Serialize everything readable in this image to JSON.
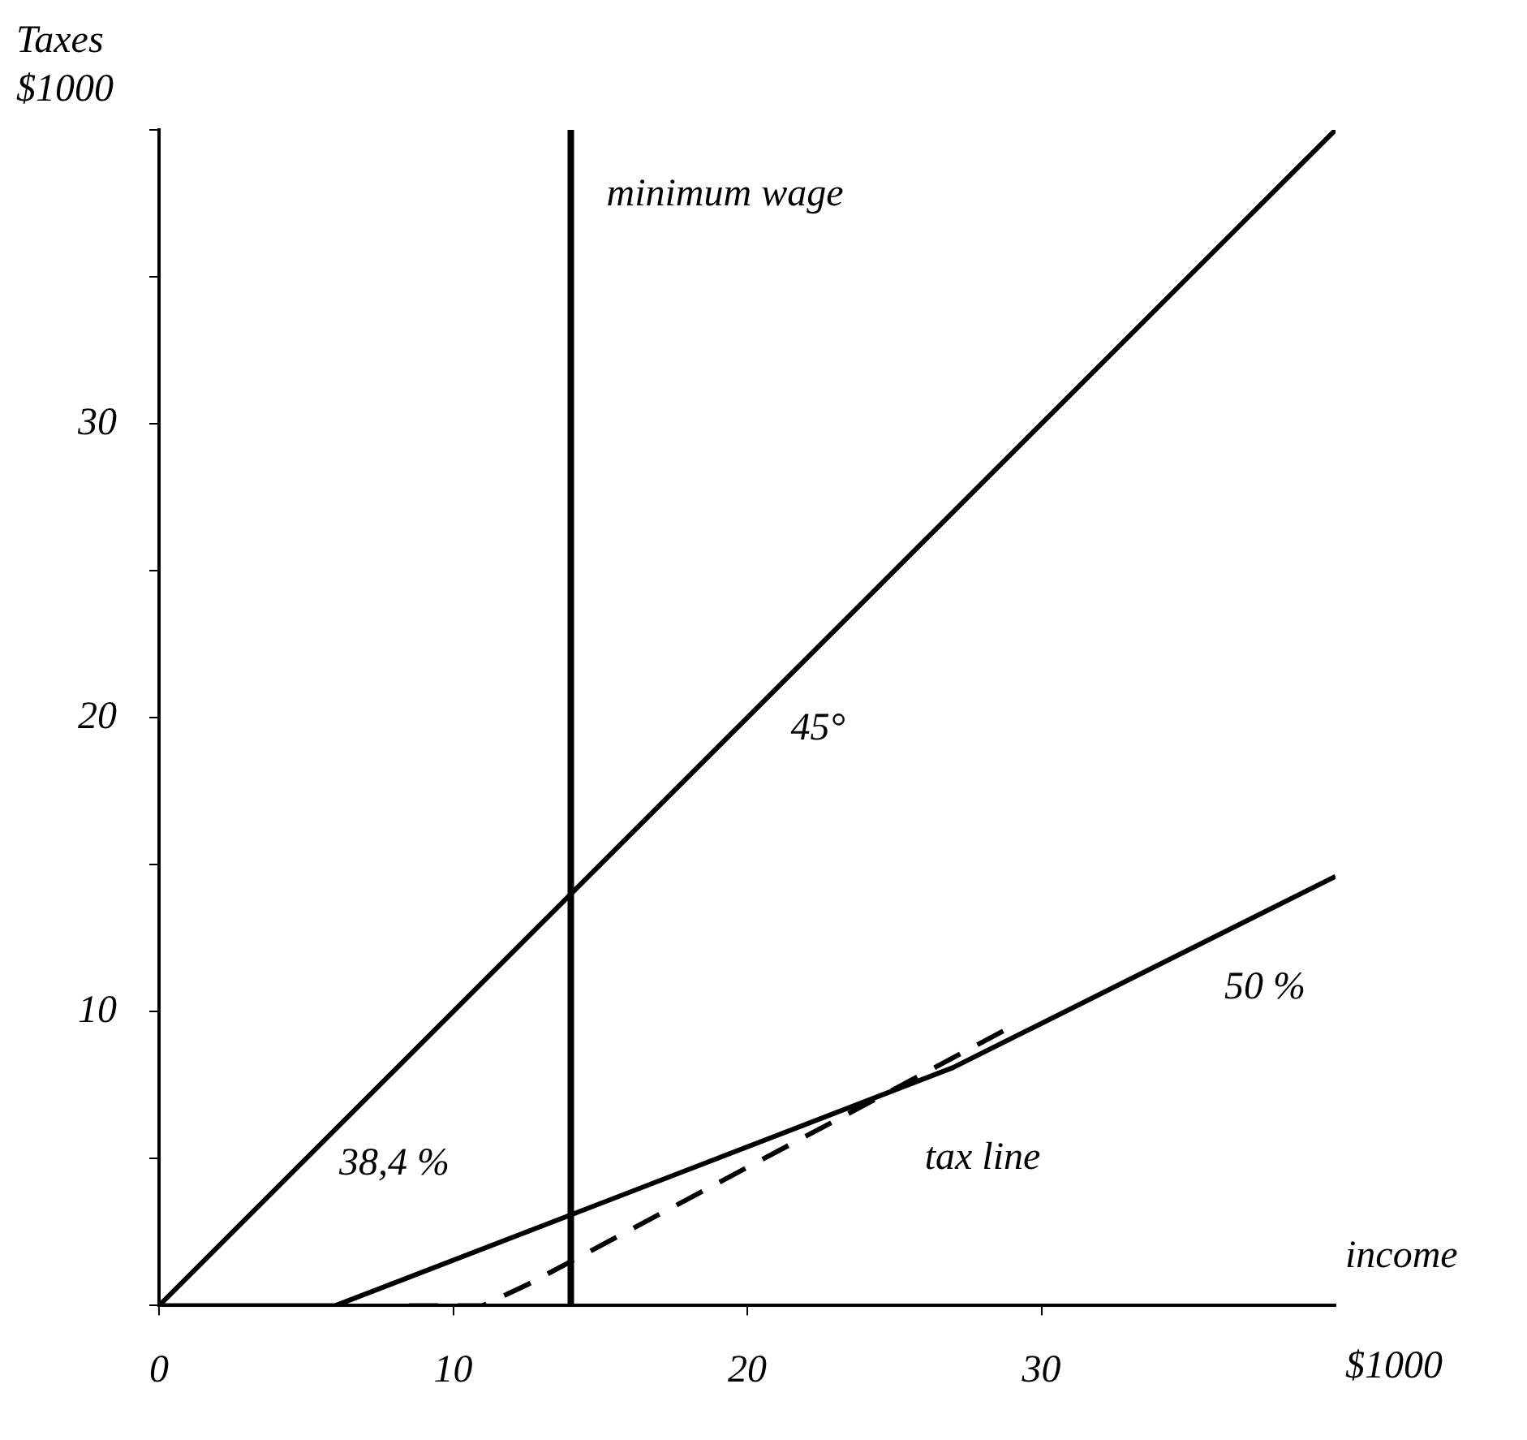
{
  "chart_data": {
    "type": "line",
    "xlabel": "income\n$1000",
    "ylabel": "Taxes\n$1000",
    "xlim": [
      0,
      40
    ],
    "ylim": [
      0,
      40
    ],
    "xticks": [
      0,
      10,
      20,
      30
    ],
    "yticks": [
      {
        "value": 0,
        "label": null
      },
      {
        "value": 5,
        "label": null
      },
      10,
      {
        "value": 15,
        "label": null
      },
      20,
      {
        "value": 25,
        "label": null
      },
      30,
      {
        "value": 35,
        "label": null
      },
      {
        "value": 40,
        "label": null
      }
    ],
    "series": [
      {
        "name": "45°",
        "color": "#000000",
        "x": [
          0,
          40
        ],
        "values": [
          0,
          40
        ],
        "line_style": "solid"
      },
      {
        "name": "tax line",
        "color": "#000000",
        "x": [
          0,
          6,
          27,
          40
        ],
        "values": [
          0,
          0,
          8.1,
          14.6
        ],
        "line_style": "solid"
      },
      {
        "color": "#000000",
        "x": [
          8.5,
          11,
          12.5,
          29
        ],
        "values": [
          0,
          0,
          0.7,
          9.5
        ],
        "line_style": "dashed"
      }
    ],
    "ref_lines": [
      {
        "axis": "x",
        "value": 14,
        "label": "minimum wage",
        "color": "#000000"
      }
    ],
    "annotations": [
      "50 %",
      "38,4 %"
    ],
    "grid": false,
    "legend": false,
    "marker": "none"
  }
}
